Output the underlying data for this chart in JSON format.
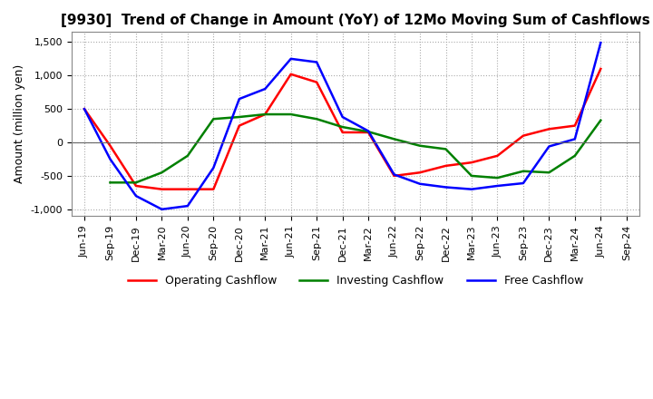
{
  "title": "[9930]  Trend of Change in Amount (YoY) of 12Mo Moving Sum of Cashflows",
  "ylabel": "Amount (million yen)",
  "x_labels": [
    "Jun-19",
    "Sep-19",
    "Dec-19",
    "Mar-20",
    "Jun-20",
    "Sep-20",
    "Dec-20",
    "Mar-21",
    "Jun-21",
    "Sep-21",
    "Dec-21",
    "Mar-22",
    "Jun-22",
    "Sep-22",
    "Dec-22",
    "Mar-23",
    "Jun-23",
    "Sep-23",
    "Dec-23",
    "Mar-24",
    "Jun-24",
    "Sep-24"
  ],
  "operating": [
    500,
    -50,
    -650,
    -700,
    -700,
    -700,
    250,
    420,
    1020,
    900,
    150,
    150,
    -500,
    -450,
    -350,
    -300,
    -200,
    100,
    200,
    250,
    1100,
    null
  ],
  "investing": [
    null,
    -600,
    -600,
    -450,
    -200,
    350,
    380,
    420,
    420,
    350,
    230,
    160,
    50,
    -50,
    -100,
    -500,
    -530,
    -430,
    -450,
    -200,
    330,
    null
  ],
  "free": [
    500,
    -250,
    -800,
    -1000,
    -950,
    -380,
    650,
    800,
    1250,
    1200,
    380,
    170,
    -480,
    -620,
    -670,
    -700,
    -650,
    -610,
    -60,
    50,
    1490,
    null
  ],
  "ylim": [
    -1100,
    1650
  ],
  "yticks": [
    -1000,
    -500,
    0,
    500,
    1000,
    1500
  ],
  "operating_color": "#FF0000",
  "investing_color": "#008000",
  "free_color": "#0000FF",
  "bg_color": "#FFFFFF",
  "plot_bg_color": "#FFFFFF",
  "grid_color": "#AAAAAA",
  "grid_style": ":"
}
